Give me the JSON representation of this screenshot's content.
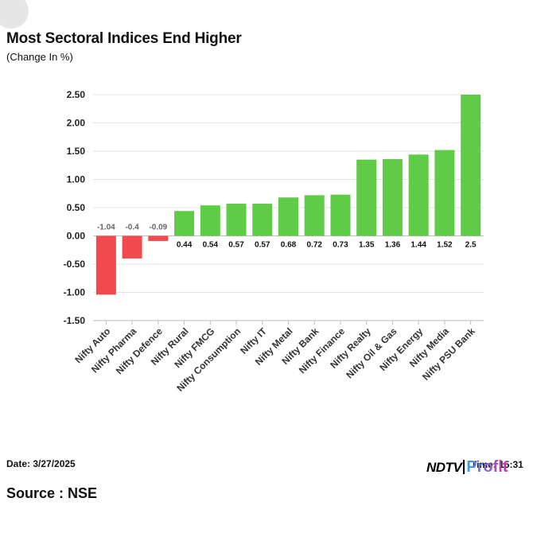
{
  "chart_data": {
    "type": "bar",
    "title": "Most Sectoral Indices End Higher",
    "subtitle": "(Change In %)",
    "xlabel": "",
    "ylabel": "",
    "ylim": [
      -1.5,
      2.5
    ],
    "yticks": [
      2.5,
      2.0,
      1.5,
      1.0,
      0.5,
      0.0,
      -0.5,
      -1.0,
      -1.5
    ],
    "ytick_labels": [
      "2.50",
      "2.00",
      "1.50",
      "1.00",
      "0.50",
      "0.00",
      "-0.50",
      "-1.00",
      "-1.50"
    ],
    "grid": true,
    "categories": [
      "Nifty Auto",
      "Nifty Pharma",
      "Nifty Defence",
      "Nifty Rural",
      "Nifty FMCG",
      "Nifty Consumption",
      "Nifty IT",
      "Nifty Metal",
      "Nifty Bank",
      "Nifty Finance",
      "Nifty Realty",
      "Nifty Oil & Gas",
      "Nifty Energy",
      "Nifty Media",
      "Nifty PSU Bank"
    ],
    "values": [
      -1.04,
      -0.4,
      -0.09,
      0.44,
      0.54,
      0.57,
      0.57,
      0.68,
      0.72,
      0.73,
      1.35,
      1.36,
      1.44,
      1.52,
      2.5
    ],
    "value_labels": [
      "-1.04",
      "-0.4",
      "-0.09",
      "0.44",
      "0.54",
      "0.57",
      "0.57",
      "0.68",
      "0.72",
      "0.73",
      "1.35",
      "1.36",
      "1.44",
      "1.52",
      "2.5"
    ],
    "colors": {
      "positive": "#5fcb46",
      "negative": "#f04a4f",
      "grid": "#e3e3e3",
      "axis": "#bdbdbd",
      "positive_label": "#111111",
      "negative_label": "#666666"
    }
  },
  "footer": {
    "date": "Date: 3/27/2025",
    "source": "Source : NSE",
    "time": "Time: 15:31"
  },
  "logo": {
    "ndtv": "NDTV",
    "profit": "Profit"
  }
}
